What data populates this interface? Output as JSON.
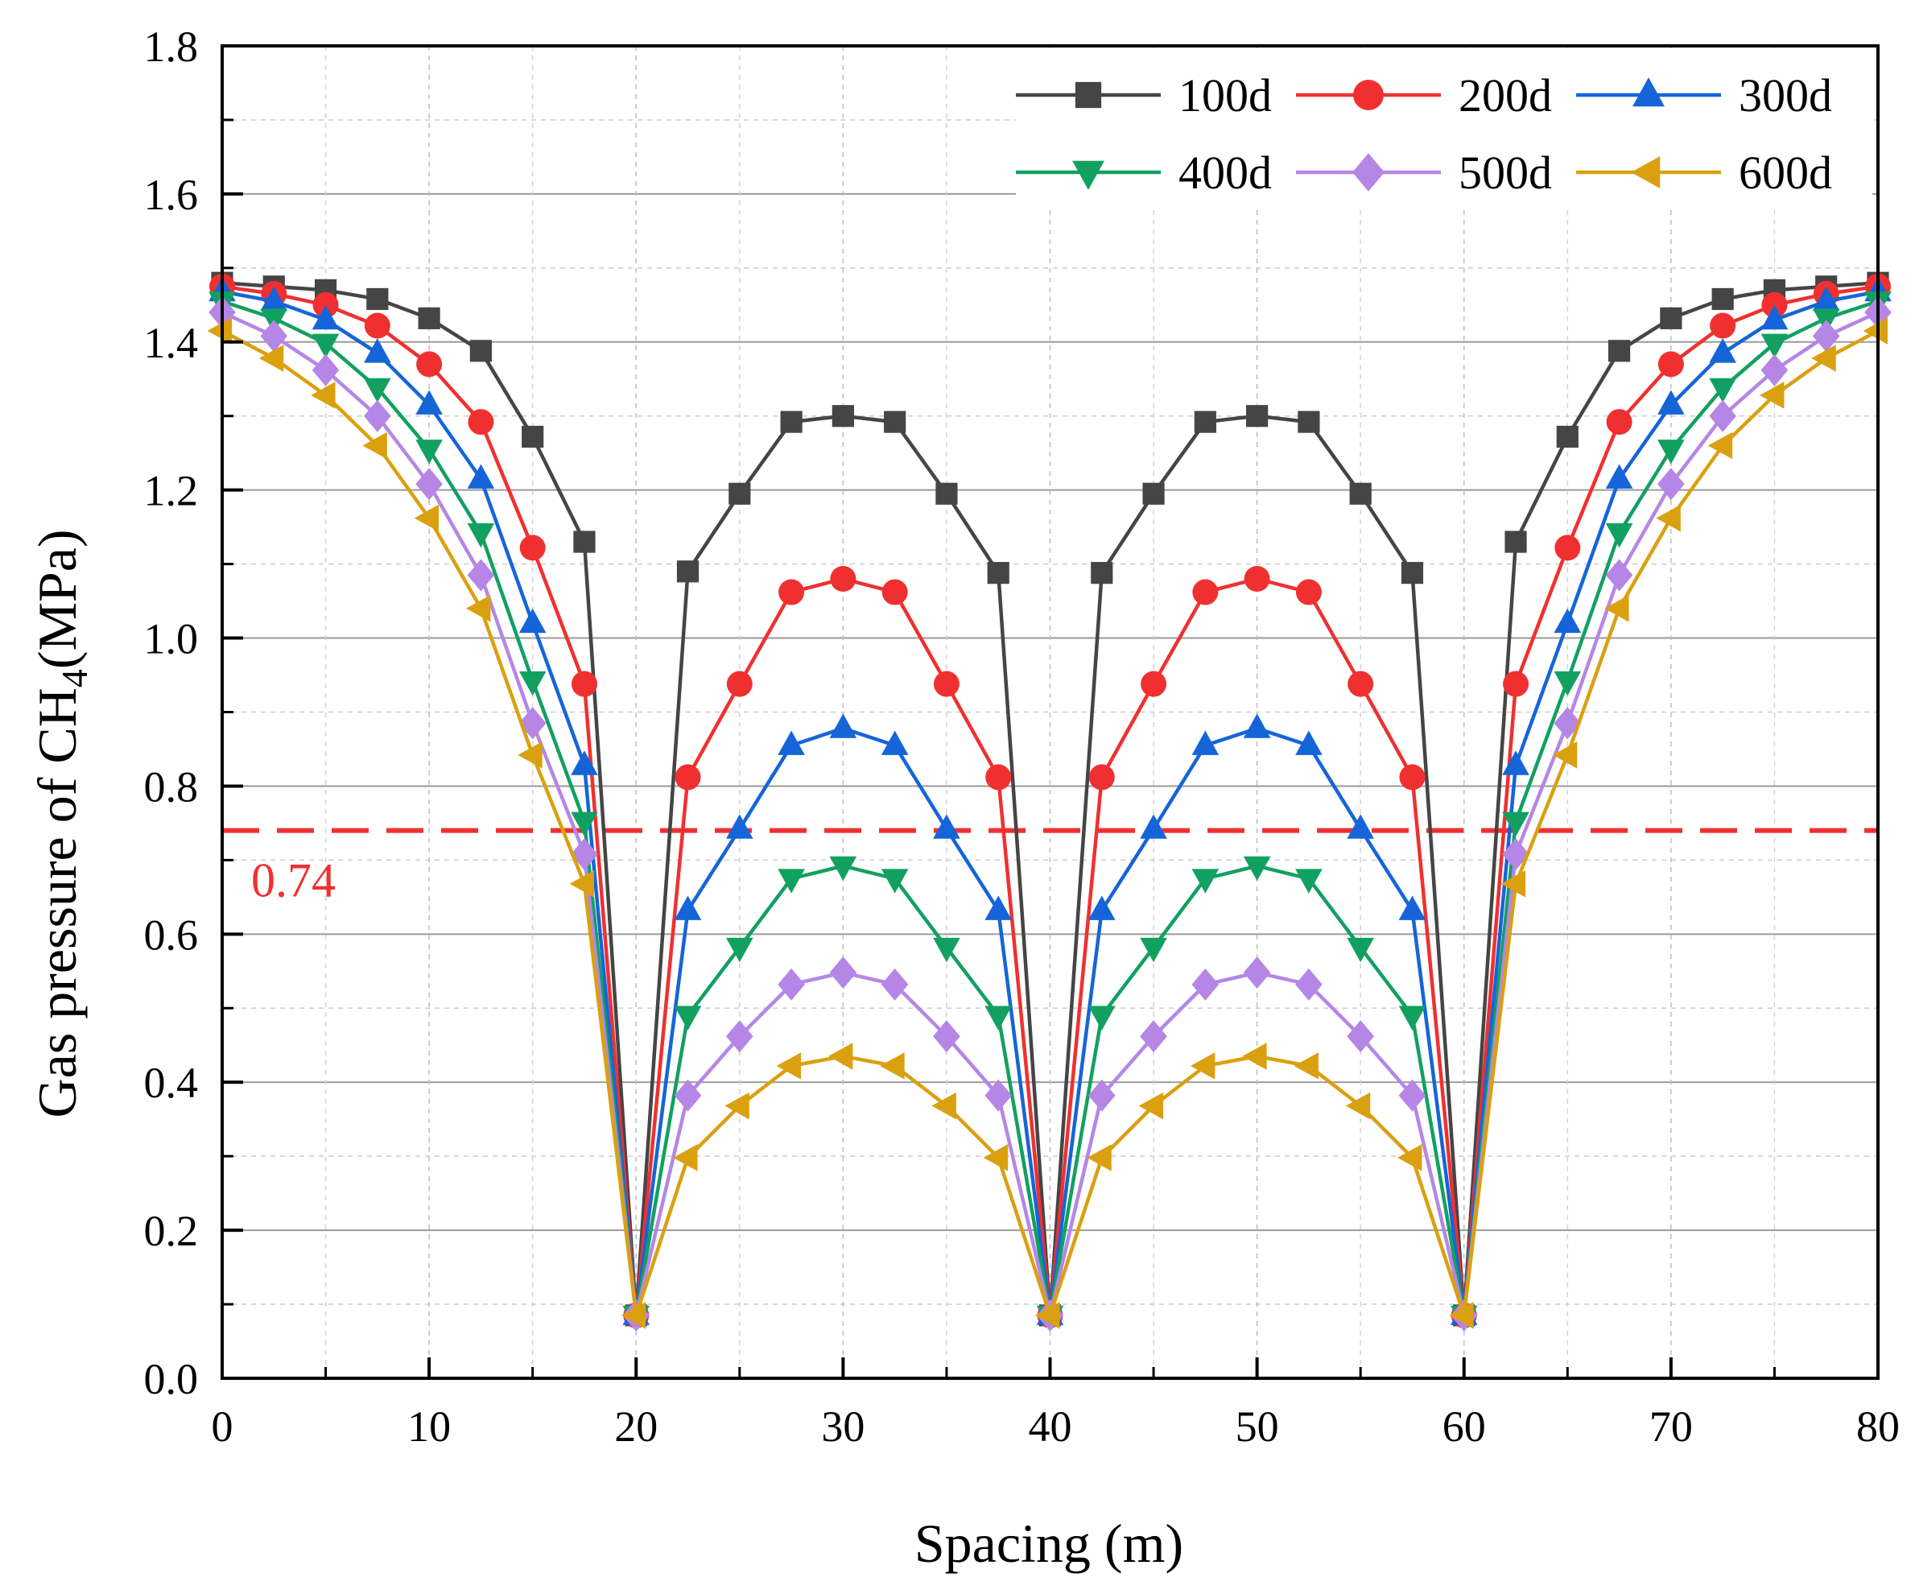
{
  "chart_data": {
    "type": "line",
    "xlabel": "Spacing (m)",
    "ylabel_main": "Gas pressure of CH",
    "ylabel_sub": "4",
    "ylabel_unit": "(MPa)",
    "xlim": [
      0,
      80
    ],
    "ylim": [
      0,
      1.8
    ],
    "xticks": [
      0,
      10,
      20,
      30,
      40,
      50,
      60,
      70,
      80
    ],
    "yticks": [
      0.0,
      0.2,
      0.4,
      0.6,
      0.8,
      1.0,
      1.2,
      1.4,
      1.6,
      1.8
    ],
    "ytick_labels": [
      "0.0",
      "0.2",
      "0.4",
      "0.6",
      "0.8",
      "1.0",
      "1.2",
      "1.4",
      "1.6",
      "1.8"
    ],
    "grid": true,
    "legend_position": "top-right",
    "reference_line": {
      "y": 0.74,
      "label": "0.74",
      "color": "#f03030"
    },
    "x": [
      0,
      2.5,
      5,
      7.5,
      10,
      12.5,
      15,
      17.5,
      20,
      22.5,
      25,
      27.5,
      30,
      32.5,
      35,
      37.5,
      40,
      42.5,
      45,
      47.5,
      50,
      52.5,
      55,
      57.5,
      60,
      62.5,
      65,
      67.5,
      70,
      72.5,
      75,
      77.5,
      80
    ],
    "series": [
      {
        "name": "100d",
        "color": "#454545",
        "marker": "square",
        "values": [
          1.48,
          1.475,
          1.47,
          1.458,
          1.432,
          1.388,
          1.272,
          1.13,
          0.085,
          1.09,
          1.195,
          1.292,
          1.3,
          1.292,
          1.195,
          1.088,
          0.085,
          1.088,
          1.195,
          1.292,
          1.3,
          1.292,
          1.195,
          1.088,
          0.085,
          1.13,
          1.272,
          1.388,
          1.432,
          1.458,
          1.47,
          1.475,
          1.48
        ]
      },
      {
        "name": "200d",
        "color": "#f03030",
        "marker": "circle",
        "values": [
          1.475,
          1.465,
          1.45,
          1.422,
          1.37,
          1.292,
          1.122,
          0.938,
          0.085,
          0.812,
          0.938,
          1.062,
          1.08,
          1.062,
          0.938,
          0.812,
          0.085,
          0.812,
          0.938,
          1.062,
          1.08,
          1.062,
          0.938,
          0.812,
          0.085,
          0.938,
          1.122,
          1.292,
          1.37,
          1.422,
          1.45,
          1.465,
          1.475
        ]
      },
      {
        "name": "300d",
        "color": "#1565d8",
        "marker": "triangle-up",
        "values": [
          1.468,
          1.455,
          1.43,
          1.385,
          1.315,
          1.215,
          1.02,
          0.828,
          0.085,
          0.632,
          0.742,
          0.855,
          0.878,
          0.855,
          0.742,
          0.632,
          0.085,
          0.632,
          0.742,
          0.855,
          0.878,
          0.855,
          0.742,
          0.632,
          0.085,
          0.828,
          1.02,
          1.215,
          1.315,
          1.385,
          1.43,
          1.455,
          1.468
        ]
      },
      {
        "name": "400d",
        "color": "#12a060",
        "marker": "triangle-down",
        "values": [
          1.455,
          1.432,
          1.398,
          1.338,
          1.255,
          1.142,
          0.942,
          0.752,
          0.085,
          0.49,
          0.582,
          0.675,
          0.692,
          0.675,
          0.582,
          0.49,
          0.085,
          0.49,
          0.582,
          0.675,
          0.692,
          0.675,
          0.582,
          0.49,
          0.085,
          0.752,
          0.942,
          1.142,
          1.255,
          1.338,
          1.398,
          1.432,
          1.455
        ]
      },
      {
        "name": "500d",
        "color": "#b586e6",
        "marker": "diamond",
        "values": [
          1.44,
          1.408,
          1.362,
          1.3,
          1.208,
          1.085,
          0.885,
          0.708,
          0.085,
          0.382,
          0.462,
          0.532,
          0.548,
          0.532,
          0.462,
          0.382,
          0.085,
          0.382,
          0.462,
          0.532,
          0.548,
          0.532,
          0.462,
          0.382,
          0.085,
          0.708,
          0.885,
          1.085,
          1.208,
          1.3,
          1.362,
          1.408,
          1.44
        ]
      },
      {
        "name": "600d",
        "color": "#daa010",
        "marker": "triangle-left",
        "values": [
          1.415,
          1.378,
          1.328,
          1.26,
          1.162,
          1.04,
          0.842,
          0.668,
          0.085,
          0.298,
          0.368,
          0.422,
          0.435,
          0.422,
          0.368,
          0.298,
          0.085,
          0.298,
          0.368,
          0.422,
          0.435,
          0.422,
          0.368,
          0.298,
          0.085,
          0.668,
          0.842,
          1.04,
          1.162,
          1.26,
          1.328,
          1.378,
          1.415
        ]
      }
    ]
  }
}
